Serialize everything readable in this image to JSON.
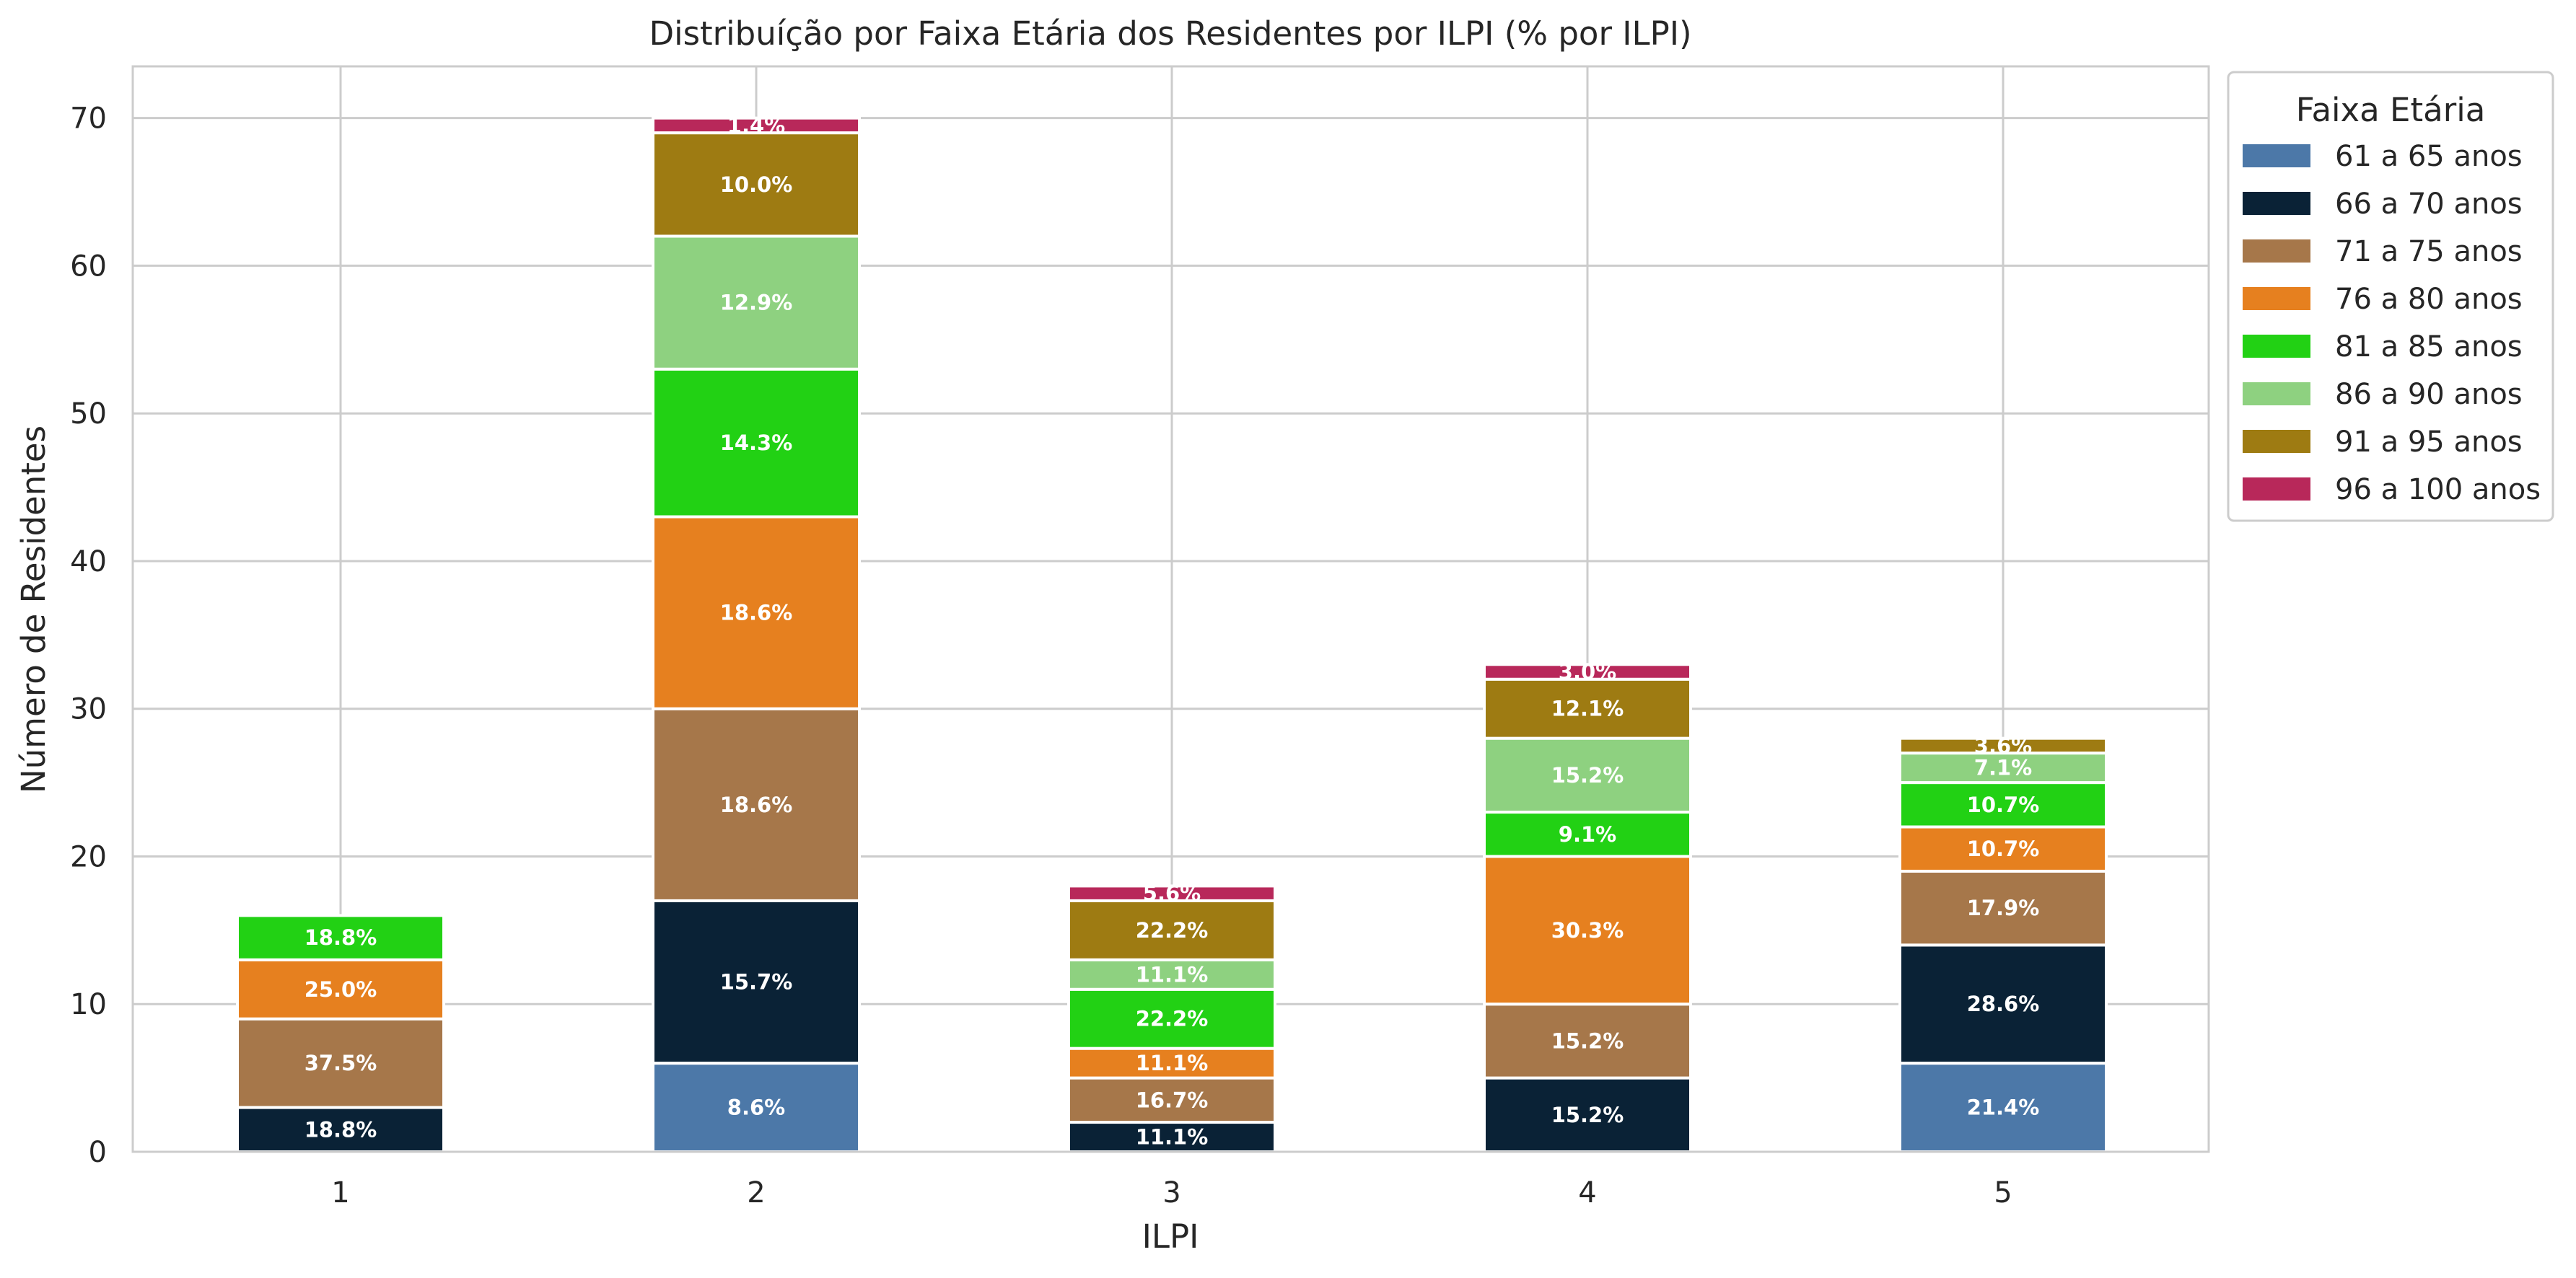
{
  "chart_data": {
    "type": "bar",
    "stacked": true,
    "title": "Distribuíção por Faixa Etária dos Residentes por ILPI (% por ILPI)",
    "xlabel": "ILPI",
    "ylabel": "Número de Residentes",
    "categories": [
      "1",
      "2",
      "3",
      "4",
      "5"
    ],
    "ylim": [
      0,
      73.5
    ],
    "yticks": [
      0,
      10,
      20,
      30,
      40,
      50,
      60,
      70
    ],
    "grid": true,
    "legend": {
      "title": "Faixa Etária",
      "placement": "outside-top-right"
    },
    "series": [
      {
        "name": "61 a 65 anos",
        "color": "#4c78a8",
        "values": [
          0,
          6,
          0,
          0,
          6
        ]
      },
      {
        "name": "66 a 70 anos",
        "color": "#0a2236",
        "values": [
          3,
          11,
          2,
          5,
          8
        ]
      },
      {
        "name": "71 a 75 anos",
        "color": "#a6774a",
        "values": [
          6,
          13,
          3,
          5,
          5
        ]
      },
      {
        "name": "76 a 80 anos",
        "color": "#e6801f",
        "values": [
          4,
          13,
          2,
          10,
          3
        ]
      },
      {
        "name": "81 a 85 anos",
        "color": "#22d114",
        "values": [
          3,
          10,
          4,
          3,
          3
        ]
      },
      {
        "name": "86 a 90 anos",
        "color": "#8ed180",
        "values": [
          0,
          9,
          2,
          5,
          2
        ]
      },
      {
        "name": "91 a 95 anos",
        "color": "#9e7b12",
        "values": [
          0,
          7,
          4,
          4,
          1
        ]
      },
      {
        "name": "96 a 100 anos",
        "color": "#b8285a",
        "values": [
          0,
          1,
          1,
          1,
          0
        ]
      }
    ],
    "data_labels": [
      [
        "",
        "18.8%",
        "37.5%",
        "25.0%",
        "18.8%",
        "",
        "",
        ""
      ],
      [
        "8.6%",
        "15.7%",
        "18.6%",
        "18.6%",
        "14.3%",
        "12.9%",
        "10.0%",
        "1.4%"
      ],
      [
        "",
        "11.1%",
        "16.7%",
        "11.1%",
        "22.2%",
        "11.1%",
        "22.2%",
        "5.6%"
      ],
      [
        "",
        "15.2%",
        "15.2%",
        "30.3%",
        "9.1%",
        "15.2%",
        "12.1%",
        "3.0%"
      ],
      [
        "21.4%",
        "28.6%",
        "17.9%",
        "10.7%",
        "10.7%",
        "7.1%",
        "3.6%",
        ""
      ]
    ]
  }
}
